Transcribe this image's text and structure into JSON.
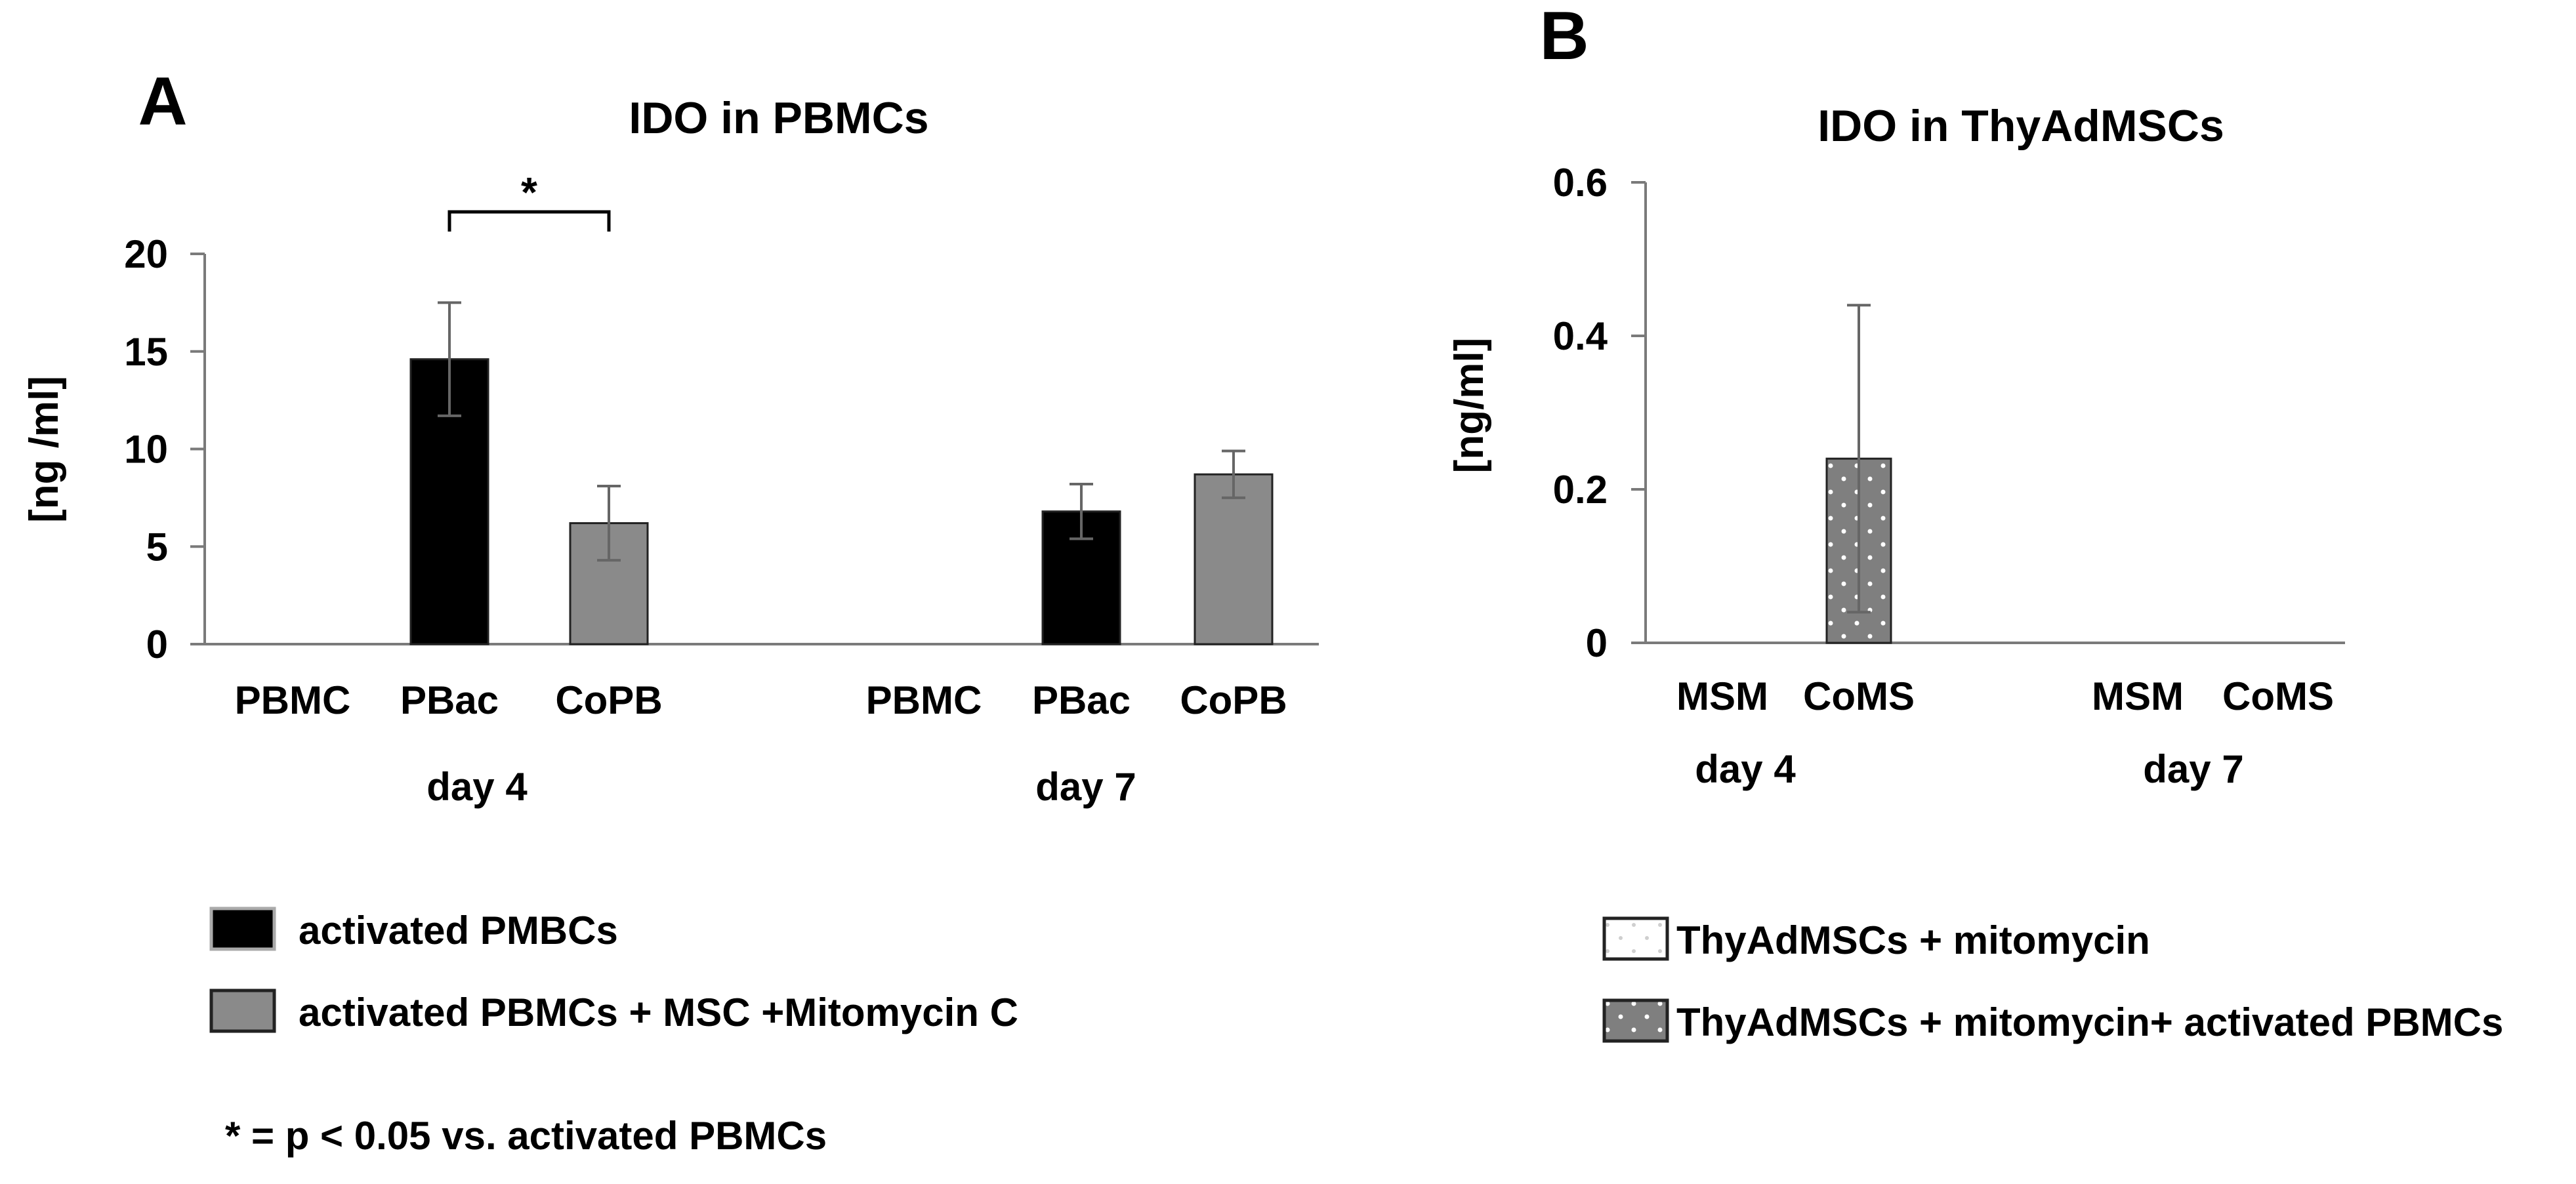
{
  "chart_data": [
    {
      "panel_label": "A",
      "type": "bar",
      "title": "IDO in PBMCs",
      "ylabel": "[ng /ml]",
      "xlabel": "",
      "ylim": [
        0,
        20
      ],
      "yticks": [
        0,
        5,
        10,
        15,
        20
      ],
      "grid": false,
      "groups": [
        {
          "label": "day 4",
          "categories": [
            "PBMC",
            "PBac",
            "CoPB"
          ],
          "bars": [
            {
              "category": "PBMC",
              "value": 0,
              "error": 0,
              "series": ""
            },
            {
              "category": "PBac",
              "value": 14.6,
              "error": 2.9,
              "series": "activated PMBCs"
            },
            {
              "category": "CoPB",
              "value": 6.2,
              "error": 1.9,
              "series": "activated  PBMCs + MSC +Mitomycin C"
            }
          ]
        },
        {
          "label": "day 7",
          "categories": [
            "PBMC",
            "PBac",
            "CoPB"
          ],
          "bars": [
            {
              "category": "PBMC",
              "value": 0,
              "error": 0,
              "series": ""
            },
            {
              "category": "PBac",
              "value": 6.8,
              "error": 1.4,
              "series": "activated PMBCs"
            },
            {
              "category": "CoPB",
              "value": 8.7,
              "error": 1.2,
              "series": "activated  PBMCs + MSC +Mitomycin C"
            }
          ]
        }
      ],
      "series": [
        {
          "name": "activated PMBCs",
          "color": "#000000",
          "pattern": "solid"
        },
        {
          "name": "activated  PBMCs + MSC +Mitomycin C",
          "color": "#8a8a8a",
          "pattern": "solid"
        }
      ],
      "significance": {
        "label": "*",
        "between": [
          "PBac",
          "CoPB"
        ],
        "group": "day 4"
      },
      "footnote": "* = p <  0.05 vs. activated PBMCs",
      "legend_position": "bottom-left"
    },
    {
      "panel_label": "B",
      "type": "bar",
      "title": "IDO in ThyAdMSCs",
      "ylabel": "[ng/ml]",
      "xlabel": "",
      "ylim": [
        0,
        0.6
      ],
      "yticks": [
        0,
        0.2,
        0.4,
        0.6
      ],
      "grid": false,
      "groups": [
        {
          "label": "day 4",
          "categories": [
            "MSM",
            "CoMS"
          ],
          "bars": [
            {
              "category": "MSM",
              "value": 0,
              "error": 0,
              "series": "ThyAdMSCs + mitomycin"
            },
            {
              "category": "CoMS",
              "value": 0.24,
              "error": 0.2,
              "series": "ThyAdMSCs + mitomycin+ activated PBMCs"
            }
          ]
        },
        {
          "label": "day 7",
          "categories": [
            "MSM",
            "CoMS"
          ],
          "bars": [
            {
              "category": "MSM",
              "value": 0,
              "error": 0,
              "series": "ThyAdMSCs + mitomycin"
            },
            {
              "category": "CoMS",
              "value": 0,
              "error": 0,
              "series": "ThyAdMSCs + mitomycin+ activated PBMCs"
            }
          ]
        }
      ],
      "series": [
        {
          "name": "ThyAdMSCs + mitomycin",
          "color": "#ffffff",
          "pattern": "dotted"
        },
        {
          "name": "ThyAdMSCs + mitomycin+ activated PBMCs",
          "color": "#7f7f7f",
          "pattern": "dotted"
        }
      ],
      "legend_position": "bottom-right"
    }
  ]
}
